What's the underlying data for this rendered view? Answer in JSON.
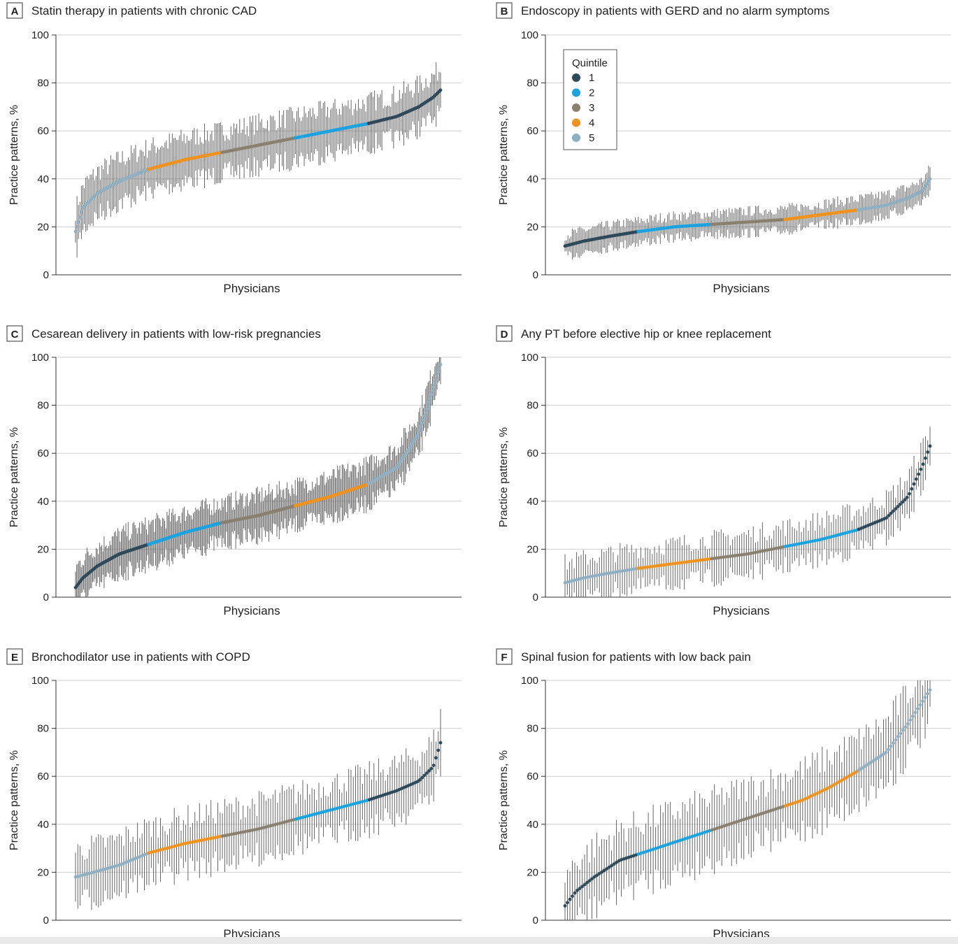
{
  "y_axis_label": "Practice patterns, %",
  "x_axis_label": "Physicians",
  "legend": {
    "title": "Quintile",
    "items": [
      {
        "label": "1",
        "color": "#2e4a5a"
      },
      {
        "label": "2",
        "color": "#1aa3e0"
      },
      {
        "label": "3",
        "color": "#8a8070"
      },
      {
        "label": "4",
        "color": "#f0921e"
      },
      {
        "label": "5",
        "color": "#8fb0c2"
      }
    ]
  },
  "errorbar_color": "#555555",
  "chart_data": [
    {
      "panel": "A",
      "title": "Statin therapy in patients with chronic CAD",
      "type": "scatter",
      "xlabel": "Physicians",
      "ylabel": "Practice patterns, %",
      "ylim": [
        0,
        100
      ],
      "yticks": [
        0,
        20,
        40,
        60,
        80,
        100
      ],
      "n_physicians": 250,
      "ci_halfwidth": 10,
      "quintile_order": [
        5,
        4,
        3,
        2,
        1
      ],
      "curve": [
        [
          0,
          18
        ],
        [
          0.02,
          28
        ],
        [
          0.06,
          34
        ],
        [
          0.12,
          39
        ],
        [
          0.2,
          44
        ],
        [
          0.3,
          48
        ],
        [
          0.4,
          51
        ],
        [
          0.5,
          54
        ],
        [
          0.6,
          57
        ],
        [
          0.7,
          60
        ],
        [
          0.8,
          63
        ],
        [
          0.88,
          66
        ],
        [
          0.94,
          70
        ],
        [
          0.98,
          74
        ],
        [
          1,
          77
        ]
      ]
    },
    {
      "panel": "B",
      "title": "Endoscopy in patients with GERD and no alarm symptoms",
      "type": "scatter",
      "xlabel": "Physicians",
      "ylabel": "Practice patterns, %",
      "ylim": [
        0,
        100
      ],
      "yticks": [
        0,
        20,
        40,
        60,
        80,
        100
      ],
      "n_physicians": 250,
      "ci_halfwidth": 5,
      "quintile_order": [
        1,
        2,
        3,
        4,
        5
      ],
      "curve": [
        [
          0,
          12
        ],
        [
          0.05,
          14
        ],
        [
          0.12,
          16
        ],
        [
          0.2,
          18
        ],
        [
          0.3,
          20
        ],
        [
          0.4,
          21
        ],
        [
          0.5,
          22
        ],
        [
          0.6,
          23
        ],
        [
          0.7,
          25
        ],
        [
          0.8,
          27
        ],
        [
          0.88,
          29
        ],
        [
          0.94,
          32
        ],
        [
          0.98,
          35
        ],
        [
          1,
          40
        ]
      ]
    },
    {
      "panel": "C",
      "title": "Cesarean delivery in patients with low-risk pregnancies",
      "type": "scatter",
      "xlabel": "Physicians",
      "ylabel": "Practice patterns, %",
      "ylim": [
        0,
        100
      ],
      "yticks": [
        0,
        20,
        40,
        60,
        80,
        100
      ],
      "n_physicians": 320,
      "ci_halfwidth": 9,
      "quintile_order": [
        1,
        2,
        3,
        4,
        5
      ],
      "curve": [
        [
          0,
          4
        ],
        [
          0.02,
          8
        ],
        [
          0.06,
          13
        ],
        [
          0.12,
          18
        ],
        [
          0.2,
          22
        ],
        [
          0.3,
          27
        ],
        [
          0.4,
          31
        ],
        [
          0.5,
          34
        ],
        [
          0.6,
          38
        ],
        [
          0.7,
          42
        ],
        [
          0.8,
          47
        ],
        [
          0.88,
          54
        ],
        [
          0.94,
          68
        ],
        [
          0.97,
          82
        ],
        [
          1,
          97
        ]
      ]
    },
    {
      "panel": "D",
      "title": "Any PT before elective hip or knee replacement",
      "type": "scatter",
      "xlabel": "Physicians",
      "ylabel": "Practice patterns, %",
      "ylim": [
        0,
        100
      ],
      "yticks": [
        0,
        20,
        40,
        60,
        80,
        100
      ],
      "n_physicians": 160,
      "ci_halfwidth": 9,
      "quintile_order": [
        5,
        4,
        3,
        2,
        1
      ],
      "curve": [
        [
          0,
          6
        ],
        [
          0.05,
          8
        ],
        [
          0.12,
          10
        ],
        [
          0.2,
          12
        ],
        [
          0.3,
          14
        ],
        [
          0.4,
          16
        ],
        [
          0.5,
          18
        ],
        [
          0.6,
          21
        ],
        [
          0.7,
          24
        ],
        [
          0.8,
          28
        ],
        [
          0.88,
          33
        ],
        [
          0.94,
          42
        ],
        [
          0.98,
          55
        ],
        [
          1,
          63
        ]
      ]
    },
    {
      "panel": "E",
      "title": "Bronchodilator use in patients with COPD",
      "type": "scatter",
      "xlabel": "Physicians",
      "ylabel": "Practice patterns, %",
      "ylim": [
        0,
        100
      ],
      "yticks": [
        0,
        20,
        40,
        60,
        80,
        100
      ],
      "n_physicians": 160,
      "ci_halfwidth": 12,
      "quintile_order": [
        5,
        4,
        3,
        2,
        1
      ],
      "curve": [
        [
          0,
          18
        ],
        [
          0.05,
          20
        ],
        [
          0.12,
          23
        ],
        [
          0.2,
          28
        ],
        [
          0.3,
          32
        ],
        [
          0.4,
          35
        ],
        [
          0.5,
          38
        ],
        [
          0.6,
          42
        ],
        [
          0.7,
          46
        ],
        [
          0.8,
          50
        ],
        [
          0.88,
          54
        ],
        [
          0.94,
          58
        ],
        [
          0.98,
          64
        ],
        [
          1,
          74
        ]
      ]
    },
    {
      "panel": "F",
      "title": "Spinal fusion for patients with low back pain",
      "type": "scatter",
      "xlabel": "Physicians",
      "ylabel": "Practice patterns, %",
      "ylim": [
        0,
        100
      ],
      "yticks": [
        0,
        20,
        40,
        60,
        80,
        100
      ],
      "n_physicians": 150,
      "ci_halfwidth": 14,
      "quintile_order": [
        1,
        2,
        3,
        4,
        5
      ],
      "curve": [
        [
          0,
          6
        ],
        [
          0.03,
          12
        ],
        [
          0.08,
          18
        ],
        [
          0.15,
          25
        ],
        [
          0.25,
          30
        ],
        [
          0.35,
          35
        ],
        [
          0.45,
          40
        ],
        [
          0.55,
          45
        ],
        [
          0.65,
          50
        ],
        [
          0.72,
          55
        ],
        [
          0.8,
          62
        ],
        [
          0.88,
          70
        ],
        [
          0.94,
          82
        ],
        [
          1,
          96
        ]
      ]
    }
  ]
}
